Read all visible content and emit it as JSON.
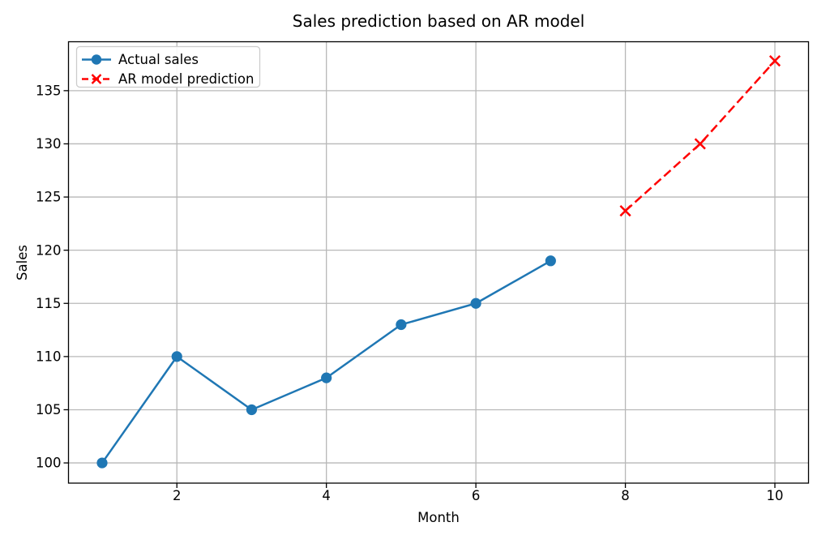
{
  "chart_data": {
    "type": "line",
    "title": "Sales prediction based on AR model",
    "xlabel": "Month",
    "ylabel": "Sales",
    "x_ticks": [
      2,
      4,
      6,
      8,
      10
    ],
    "y_ticks": [
      100,
      105,
      110,
      115,
      120,
      125,
      130,
      135
    ],
    "xlim": [
      0.55,
      10.45
    ],
    "ylim": [
      98.1,
      139.6
    ],
    "grid": true,
    "legend_position": "upper left",
    "series": [
      {
        "name": "Actual sales",
        "x": [
          1,
          2,
          3,
          4,
          5,
          6,
          7
        ],
        "y": [
          100,
          110,
          105,
          108,
          113,
          115,
          119
        ],
        "color": "#1f77b4",
        "style": "solid",
        "marker": "circle"
      },
      {
        "name": "AR model prediction",
        "x": [
          8,
          9,
          10
        ],
        "y": [
          123.7,
          130.0,
          137.8
        ],
        "color": "#ff0000",
        "style": "dashed",
        "marker": "x"
      }
    ],
    "colors": {
      "actual": "#1f77b4",
      "prediction": "#ff0000",
      "grid": "#b8b8b8",
      "axes_edge": "#000000",
      "legend_border": "#cccccc"
    }
  }
}
